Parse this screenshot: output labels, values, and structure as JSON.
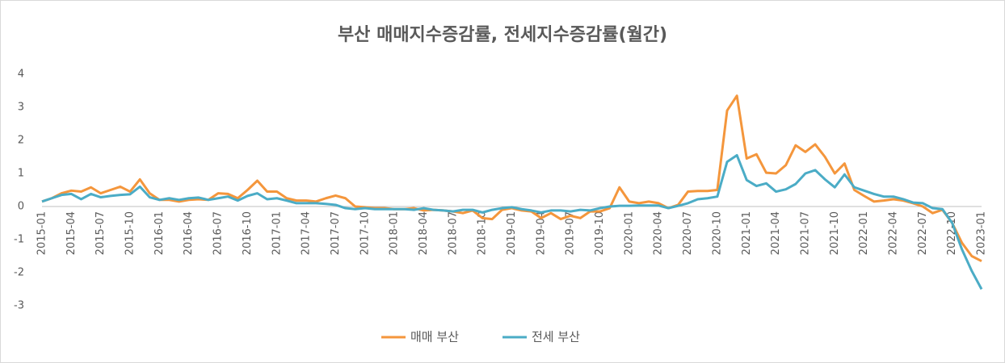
{
  "chart_data": {
    "type": "line",
    "title": "부산 매매지수증감률, 전세지수증감률(월간)",
    "categories": [
      "2015-01",
      null,
      null,
      "2015-04",
      null,
      null,
      "2015-07",
      null,
      null,
      "2015-10",
      null,
      null,
      "2016-01",
      null,
      null,
      "2016-04",
      null,
      null,
      "2016-07",
      null,
      null,
      "2016-10",
      null,
      null,
      "2017-01",
      null,
      null,
      "2017-04",
      null,
      null,
      "2017-07",
      null,
      null,
      "2017-10",
      null,
      null,
      "2018-01",
      null,
      null,
      "2018-04",
      null,
      null,
      "2018-07",
      null,
      null,
      "2018-10",
      null,
      null,
      "2019-01",
      null,
      null,
      "2019-04",
      null,
      null,
      "2019-07",
      null,
      null,
      "2019-10",
      null,
      null,
      "2020-01",
      null,
      null,
      "2020-04",
      null,
      null,
      "2020-07",
      null,
      null,
      "2020-10",
      null,
      null,
      "2021-01",
      null,
      null,
      "2021-04",
      null,
      null,
      "2021-07",
      null,
      null,
      "2021-10",
      null,
      null,
      "2022-01",
      null,
      null,
      "2022-04",
      null,
      null,
      "2022-07",
      null,
      null,
      "2022-10",
      null,
      null,
      "2023-01"
    ],
    "series": [
      {
        "name": "매매 부산",
        "color": "#f4963c",
        "values": [
          0.15,
          0.25,
          0.4,
          0.48,
          0.45,
          0.58,
          0.4,
          0.5,
          0.6,
          0.45,
          0.82,
          0.4,
          0.2,
          0.2,
          0.15,
          0.2,
          0.22,
          0.2,
          0.4,
          0.38,
          0.25,
          0.5,
          0.78,
          0.45,
          0.45,
          0.25,
          0.18,
          0.18,
          0.15,
          0.25,
          0.33,
          0.25,
          0.0,
          -0.02,
          -0.05,
          -0.05,
          -0.08,
          -0.08,
          -0.05,
          -0.12,
          -0.1,
          -0.12,
          -0.15,
          -0.2,
          -0.12,
          -0.35,
          -0.38,
          -0.1,
          -0.05,
          -0.12,
          -0.15,
          -0.35,
          -0.2,
          -0.38,
          -0.28,
          -0.35,
          -0.15,
          -0.15,
          -0.05,
          0.58,
          0.15,
          0.1,
          0.15,
          0.1,
          -0.05,
          0.05,
          0.45,
          0.47,
          0.47,
          0.5,
          2.9,
          3.35,
          1.45,
          1.58,
          1.02,
          1.0,
          1.25,
          1.85,
          1.65,
          1.88,
          1.5,
          1.0,
          1.3,
          0.5,
          0.32,
          0.15,
          0.18,
          0.22,
          0.18,
          0.1,
          0.0,
          -0.2,
          -0.1,
          -0.5,
          -1.1,
          -1.5,
          -1.65
        ]
      },
      {
        "name": "전세 부산",
        "color": "#4bacc6",
        "values": [
          0.15,
          0.25,
          0.35,
          0.38,
          0.22,
          0.38,
          0.28,
          0.32,
          0.35,
          0.37,
          0.6,
          0.28,
          0.2,
          0.25,
          0.2,
          0.25,
          0.27,
          0.2,
          0.25,
          0.3,
          0.18,
          0.32,
          0.4,
          0.22,
          0.25,
          0.18,
          0.1,
          0.1,
          0.1,
          0.08,
          0.05,
          -0.05,
          -0.08,
          -0.05,
          -0.08,
          -0.08,
          -0.08,
          -0.08,
          -0.1,
          -0.05,
          -0.1,
          -0.12,
          -0.15,
          -0.1,
          -0.1,
          -0.18,
          -0.1,
          -0.05,
          -0.02,
          -0.08,
          -0.12,
          -0.18,
          -0.12,
          -0.12,
          -0.15,
          -0.1,
          -0.12,
          -0.05,
          0.0,
          0.02,
          0.02,
          0.03,
          0.03,
          0.03,
          -0.05,
          0.02,
          0.1,
          0.22,
          0.25,
          0.3,
          1.35,
          1.55,
          0.8,
          0.62,
          0.7,
          0.45,
          0.52,
          0.68,
          1.0,
          1.1,
          0.82,
          0.58,
          0.97,
          0.58,
          0.48,
          0.38,
          0.3,
          0.3,
          0.22,
          0.12,
          0.1,
          -0.05,
          -0.08,
          -0.5,
          -1.3,
          -1.95,
          -2.5
        ]
      }
    ],
    "ylim": [
      -3,
      4
    ],
    "yticks": [
      -3,
      -2,
      -1,
      0,
      1,
      2,
      3,
      4
    ],
    "grid": false,
    "legend": "bottom"
  }
}
